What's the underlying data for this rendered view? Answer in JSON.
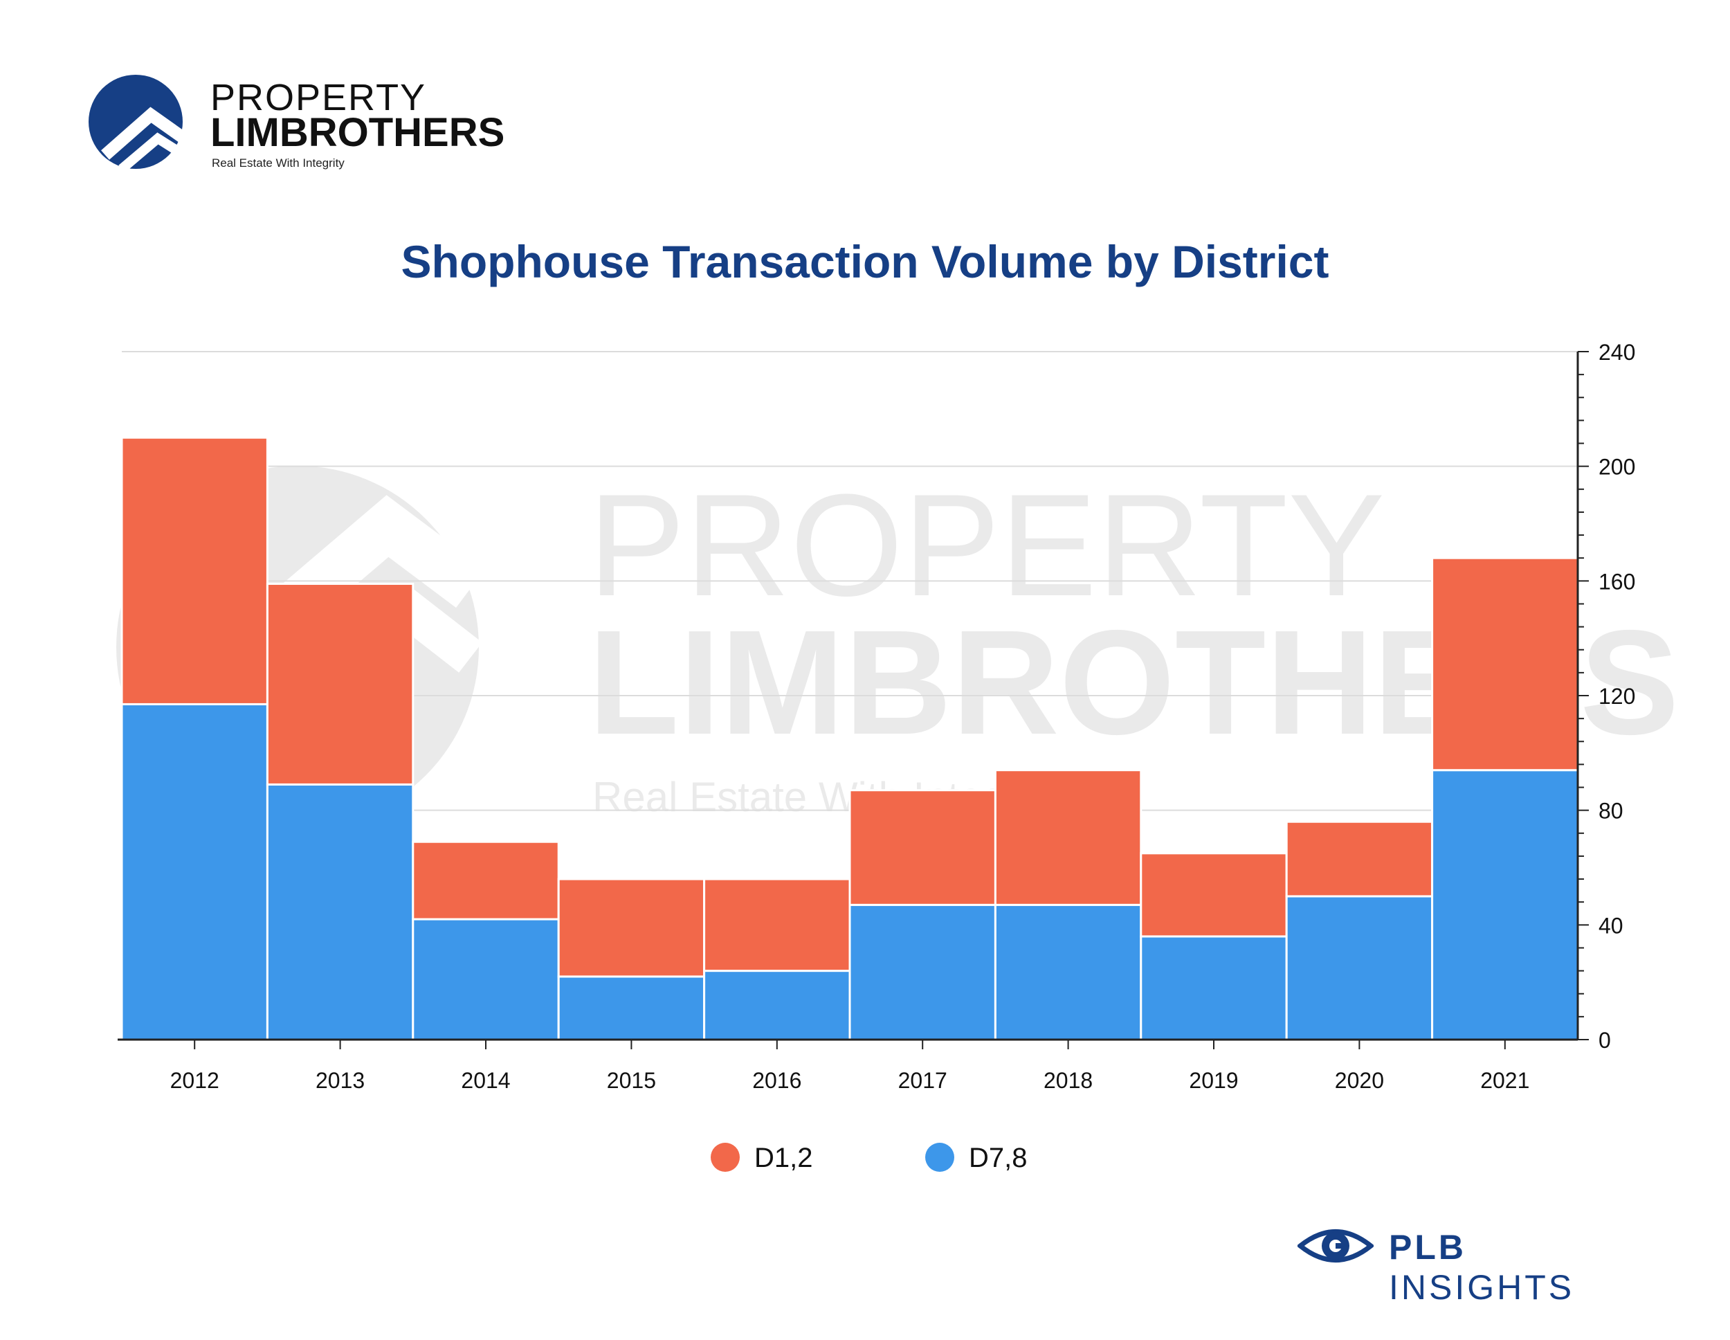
{
  "brand": {
    "name_line1": "PROPERTY",
    "name_line2": "LIMBROTHERS",
    "tagline": "Real Estate With Integrity",
    "logo_color": "#163f85"
  },
  "footer": {
    "brand_bold": "PLB",
    "brand_rest": " INSIGHTS",
    "icon": "eye-icon"
  },
  "watermark": {
    "line1": "PROPERTY",
    "line2": "LIMBROTHERS",
    "line3": "Real Estate With Integrity"
  },
  "colors": {
    "d12": "#f2684a",
    "d78": "#3d97ea",
    "title": "#163f85"
  },
  "chart_data": {
    "type": "bar",
    "stacked": true,
    "title": "Shophouse Transaction Volume by District",
    "categories": [
      "2012",
      "2013",
      "2014",
      "2015",
      "2016",
      "2017",
      "2018",
      "2019",
      "2020",
      "2021"
    ],
    "series": [
      {
        "name": "D7,8",
        "color": "#3d97ea",
        "values": [
          117,
          89,
          42,
          22,
          24,
          47,
          47,
          36,
          50,
          94
        ]
      },
      {
        "name": "D1,2",
        "color": "#f2684a",
        "values": [
          93,
          70,
          27,
          34,
          32,
          40,
          47,
          29,
          26,
          74
        ]
      }
    ],
    "ylim": [
      0,
      240
    ],
    "yticks": [
      "0",
      "40",
      "80",
      "120",
      "160",
      "200",
      "240"
    ],
    "y_axis_side": "right",
    "grid": true,
    "legend": [
      {
        "label": "D1,2",
        "color": "#f2684a"
      },
      {
        "label": "D7,8",
        "color": "#3d97ea"
      }
    ],
    "legend_position": "bottom-center"
  }
}
